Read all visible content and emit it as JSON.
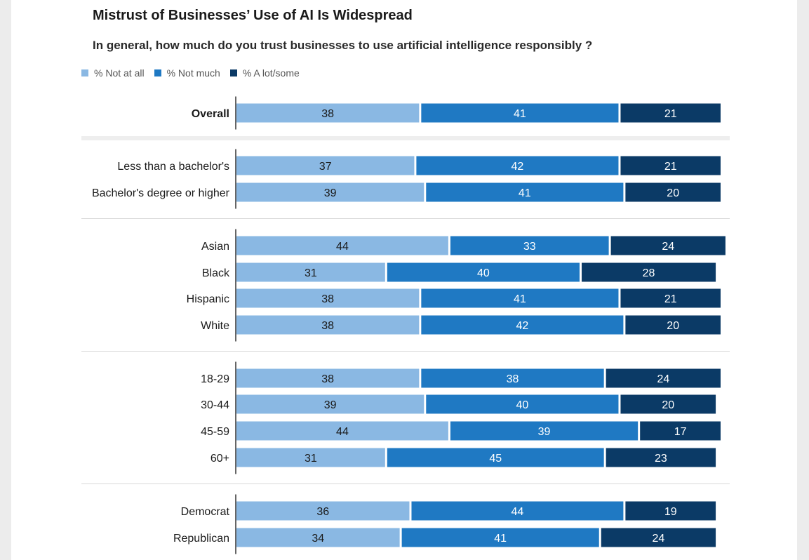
{
  "chart_data": {
    "type": "bar",
    "orientation": "horizontal",
    "stacked": true,
    "title": "Mistrust of Businesses’ Use of AI Is Widespread",
    "subtitle": "In general, how much do you trust businesses to use artificial intelligence responsibly ?",
    "legend_position": "top-left",
    "series": [
      {
        "name": "% Not at all",
        "color": "#8ab8e3"
      },
      {
        "name": "% Not much",
        "color": "#1f79c3"
      },
      {
        "name": "% A lot/some",
        "color": "#0b3a66"
      }
    ],
    "groups": [
      {
        "rows": [
          {
            "label": "Overall",
            "bold": true,
            "values": [
              38,
              41,
              21
            ]
          }
        ]
      },
      {
        "rows": [
          {
            "label": "Less than a bachelor's",
            "values": [
              37,
              42,
              21
            ]
          },
          {
            "label": "Bachelor's degree or higher",
            "values": [
              39,
              41,
              20
            ]
          }
        ]
      },
      {
        "rows": [
          {
            "label": "Asian",
            "values": [
              44,
              33,
              24
            ]
          },
          {
            "label": "Black",
            "values": [
              31,
              40,
              28
            ]
          },
          {
            "label": "Hispanic",
            "values": [
              38,
              41,
              21
            ]
          },
          {
            "label": "White",
            "values": [
              38,
              42,
              20
            ]
          }
        ]
      },
      {
        "rows": [
          {
            "label": "18-29",
            "values": [
              38,
              38,
              24
            ]
          },
          {
            "label": "30-44",
            "values": [
              39,
              40,
              20
            ]
          },
          {
            "label": "45-59",
            "values": [
              44,
              39,
              17
            ]
          },
          {
            "label": "60+",
            "values": [
              31,
              45,
              23
            ]
          }
        ]
      },
      {
        "rows": [
          {
            "label": "Democrat",
            "values": [
              36,
              44,
              19
            ]
          },
          {
            "label": "Republican",
            "values": [
              34,
              41,
              24
            ]
          }
        ]
      }
    ]
  }
}
